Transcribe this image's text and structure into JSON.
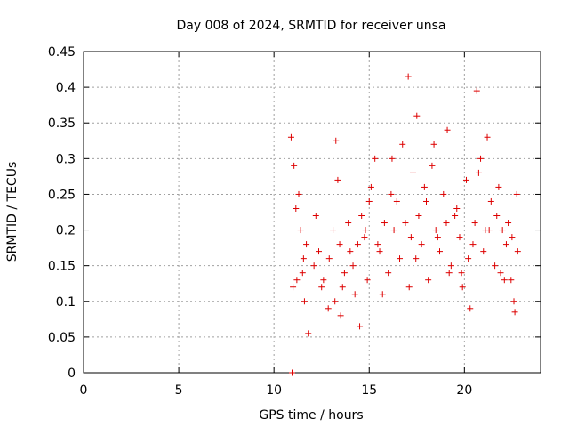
{
  "chart_data": {
    "type": "scatter",
    "title": "Day 008 of 2024, SRMTID for receiver unsa",
    "xlabel": "GPS time / hours",
    "ylabel": "SRMTID / TECUs",
    "xlim": [
      0,
      24
    ],
    "ylim": [
      0,
      0.45
    ],
    "xticks": [
      0,
      5,
      10,
      15,
      20
    ],
    "yticks": [
      0,
      0.05,
      0.1,
      0.15,
      0.2,
      0.25,
      0.3,
      0.35,
      0.4,
      0.45
    ],
    "grid": true,
    "marker": "plus",
    "colors": {
      "series": "#dd0000",
      "grid": "#a0a0a0",
      "axis": "#000000"
    },
    "series": [
      {
        "name": "SRMTID",
        "x": [
          10.95,
          10.9,
          11.3,
          11.0,
          11.4,
          11.55,
          11.2,
          11.7,
          11.8,
          12.1,
          12.35,
          12.6,
          12.85,
          13.1,
          13.25,
          13.2,
          13.45,
          13.5,
          13.7,
          13.9,
          14.0,
          14.25,
          14.5,
          14.6,
          14.75,
          14.9,
          15.1,
          15.3,
          15.55,
          15.8,
          16.0,
          16.2,
          16.45,
          16.6,
          16.9,
          17.05,
          17.1,
          17.3,
          17.5,
          17.6,
          17.75,
          17.9,
          18.1,
          18.3,
          18.5,
          18.7,
          18.9,
          19.1,
          19.3,
          19.5,
          19.75,
          19.9,
          20.1,
          20.3,
          20.55,
          20.65,
          20.85,
          21.0,
          21.2,
          21.4,
          21.6,
          21.8,
          22.0,
          22.2,
          22.45,
          22.6,
          22.75,
          22.8,
          11.15,
          11.6,
          12.2,
          12.9,
          13.6,
          14.4,
          15.0,
          15.7,
          16.3,
          16.75,
          17.45,
          18.0,
          18.6,
          19.2,
          19.6,
          20.2,
          20.75,
          21.3,
          21.9,
          22.3,
          22.65,
          11.05,
          11.5,
          12.5,
          13.35,
          14.15,
          14.8,
          15.45,
          16.15,
          17.2,
          18.4,
          19.05,
          19.85,
          20.45,
          21.1,
          21.7,
          22.1,
          22.5
        ],
        "y": [
          0.0,
          0.33,
          0.25,
          0.12,
          0.2,
          0.16,
          0.13,
          0.18,
          0.055,
          0.15,
          0.17,
          0.13,
          0.09,
          0.2,
          0.325,
          0.1,
          0.18,
          0.08,
          0.14,
          0.21,
          0.17,
          0.11,
          0.065,
          0.22,
          0.19,
          0.13,
          0.26,
          0.3,
          0.17,
          0.21,
          0.14,
          0.3,
          0.24,
          0.16,
          0.21,
          0.415,
          0.12,
          0.28,
          0.36,
          0.22,
          0.18,
          0.26,
          0.13,
          0.29,
          0.2,
          0.17,
          0.25,
          0.34,
          0.15,
          0.22,
          0.19,
          0.12,
          0.27,
          0.09,
          0.21,
          0.395,
          0.3,
          0.17,
          0.33,
          0.24,
          0.15,
          0.26,
          0.2,
          0.18,
          0.13,
          0.1,
          0.25,
          0.17,
          0.23,
          0.1,
          0.22,
          0.16,
          0.12,
          0.18,
          0.24,
          0.11,
          0.2,
          0.32,
          0.16,
          0.24,
          0.19,
          0.14,
          0.23,
          0.16,
          0.28,
          0.2,
          0.14,
          0.21,
          0.085,
          0.29,
          0.14,
          0.12,
          0.27,
          0.15,
          0.2,
          0.18,
          0.25,
          0.19,
          0.32,
          0.21,
          0.14,
          0.18,
          0.2,
          0.22,
          0.13,
          0.19
        ]
      }
    ]
  }
}
